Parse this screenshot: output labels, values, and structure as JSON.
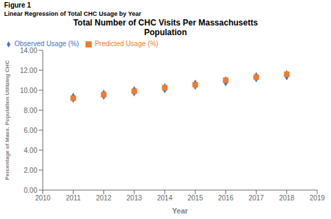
{
  "chart_data": {
    "type": "scatter",
    "title": "Total Number of CHC Visits Per Massachusetts\nPopulation",
    "annotations": [
      "Figure 1",
      "Linear Regression of Total CHC Usage by Year"
    ],
    "x_label": "Year",
    "y_label": "Percentage of Mass. Population Utilizing CHC",
    "x": [
      2011,
      2012,
      2013,
      2014,
      2015,
      2016,
      2017,
      2018
    ],
    "series": [
      {
        "name": "Observed Usage (%)",
        "color": "#4472C4",
        "marker": "diamond",
        "values": [
          9.25,
          9.55,
          9.9,
          10.2,
          10.55,
          10.9,
          11.3,
          11.5
        ]
      },
      {
        "name": "Predicted Usage (%)",
        "color": "#ED7D31",
        "marker": "square",
        "values": [
          9.2,
          9.55,
          9.9,
          10.25,
          10.55,
          11.0,
          11.3,
          11.6
        ]
      }
    ],
    "xlim": [
      2010,
      2019
    ],
    "xticks": [
      2010,
      2011,
      2012,
      2013,
      2014,
      2015,
      2016,
      2017,
      2018,
      2019
    ],
    "ylim": [
      0.0,
      14.0
    ],
    "yticks": [
      {
        "value": 0.0,
        "label": "0.00"
      },
      {
        "value": 2.0,
        "label": "2.00"
      },
      {
        "value": 4.0,
        "label": "4.00"
      },
      {
        "value": 6.0,
        "label": "6.00"
      },
      {
        "value": 8.0,
        "label": "8.00"
      },
      {
        "value": 10.0,
        "label": "10.00"
      },
      {
        "value": 12.0,
        "label": "12.00"
      },
      {
        "value": 14.0,
        "label": "14.00"
      }
    ],
    "legend": "upper left",
    "grid": false
  }
}
